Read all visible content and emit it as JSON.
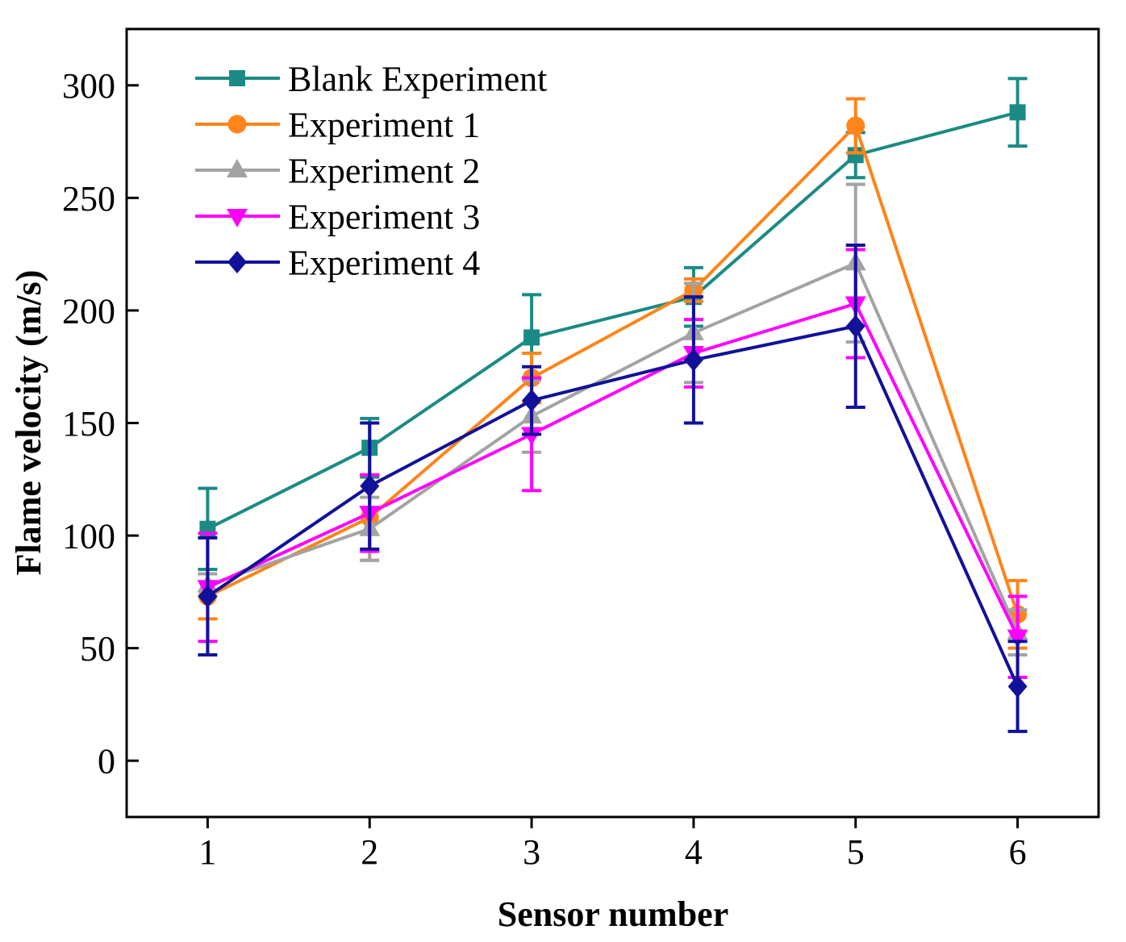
{
  "chart_data": {
    "type": "line",
    "title": "",
    "xlabel": "Sensor number",
    "ylabel": "Flame velocity (m/s)",
    "x": [
      1,
      2,
      3,
      4,
      5,
      6
    ],
    "xlim": [
      0.5,
      6.5
    ],
    "ylim": [
      -25,
      325
    ],
    "yticks": [
      0,
      50,
      100,
      150,
      200,
      250,
      300
    ],
    "grid": false,
    "legend": "top-left",
    "series": [
      {
        "name": "Blank Experiment",
        "color": "#1b8a84",
        "marker": "square",
        "values": [
          103,
          139,
          188,
          206,
          269,
          288
        ],
        "errors": [
          18,
          13,
          19,
          13,
          10,
          15
        ]
      },
      {
        "name": "Experiment 1",
        "color": "#ff8419",
        "marker": "circle",
        "values": [
          73,
          108,
          170,
          209,
          282,
          65
        ],
        "errors": [
          10,
          19,
          11,
          5,
          12,
          15
        ]
      },
      {
        "name": "Experiment 2",
        "color": "#a3a3a3",
        "marker": "triangle-up",
        "values": [
          78,
          103,
          153,
          190,
          221,
          57
        ],
        "errors": [
          5,
          14,
          16,
          22,
          35,
          10
        ]
      },
      {
        "name": "Experiment 3",
        "color": "#ff00ff",
        "marker": "triangle-down",
        "values": [
          77,
          110,
          145,
          181,
          203,
          55
        ],
        "errors": [
          24,
          17,
          25,
          15,
          24,
          18
        ]
      },
      {
        "name": "Experiment 4",
        "color": "#11119a",
        "marker": "diamond",
        "values": [
          73,
          122,
          160,
          178,
          193,
          33
        ],
        "errors": [
          26,
          28,
          15,
          28,
          36,
          20
        ]
      }
    ]
  }
}
